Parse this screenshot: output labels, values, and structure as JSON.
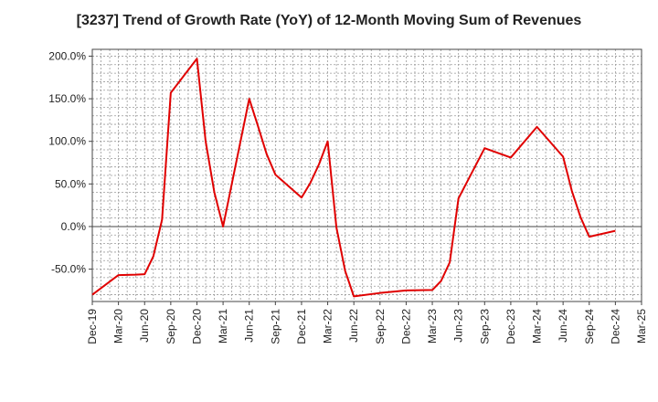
{
  "chart_data": {
    "type": "line",
    "title": "[3237]  Trend of Growth Rate (YoY) of 12-Month Moving Sum of Revenues",
    "xlabel": "",
    "ylabel": "",
    "x_tick_labels": [
      "Dec-19",
      "Mar-20",
      "Jun-20",
      "Sep-20",
      "Dec-20",
      "Mar-21",
      "Jun-21",
      "Sep-21",
      "Dec-21",
      "Mar-22",
      "Jun-22",
      "Sep-22",
      "Dec-22",
      "Mar-23",
      "Jun-23",
      "Sep-23",
      "Dec-23",
      "Mar-24",
      "Jun-24",
      "Sep-24",
      "Dec-24",
      "Mar-25"
    ],
    "y_tick_labels": [
      "200.0%",
      "150.0%",
      "100.0%",
      "50.0%",
      "0.0%",
      "-50.0%"
    ],
    "y_ticks": [
      200,
      150,
      100,
      50,
      0,
      -50
    ],
    "ylim": [
      -88,
      208
    ],
    "x_range": [
      "2019-12",
      "2025-03"
    ],
    "grid": true,
    "grid_style": "dotted",
    "legend": "none",
    "series": [
      {
        "color": "#e00000",
        "points": [
          [
            "2019-12",
            -80
          ],
          [
            "2020-03",
            -57
          ],
          [
            "2020-05",
            -56.5
          ],
          [
            "2020-06",
            -56
          ],
          [
            "2020-07",
            -35
          ],
          [
            "2020-08",
            8
          ],
          [
            "2020-09",
            157
          ],
          [
            "2020-12",
            197
          ],
          [
            "2021-01",
            100
          ],
          [
            "2021-02",
            40
          ],
          [
            "2021-03",
            0
          ],
          [
            "2021-06",
            150
          ],
          [
            "2021-07",
            118
          ],
          [
            "2021-08",
            85
          ],
          [
            "2021-09",
            61
          ],
          [
            "2021-12",
            34
          ],
          [
            "2022-01",
            51
          ],
          [
            "2022-02",
            73
          ],
          [
            "2022-03",
            100
          ],
          [
            "2022-04",
            -1
          ],
          [
            "2022-05",
            -52
          ],
          [
            "2022-06",
            -82
          ],
          [
            "2022-09",
            -78
          ],
          [
            "2022-12",
            -75
          ],
          [
            "2023-03",
            -74.5
          ],
          [
            "2023-04",
            -64
          ],
          [
            "2023-05",
            -42
          ],
          [
            "2023-06",
            33
          ],
          [
            "2023-09",
            92
          ],
          [
            "2023-12",
            81
          ],
          [
            "2024-03",
            117
          ],
          [
            "2024-06",
            82
          ],
          [
            "2024-07",
            42
          ],
          [
            "2024-08",
            11
          ],
          [
            "2024-09",
            -12
          ],
          [
            "2024-12",
            -5
          ]
        ]
      }
    ]
  }
}
